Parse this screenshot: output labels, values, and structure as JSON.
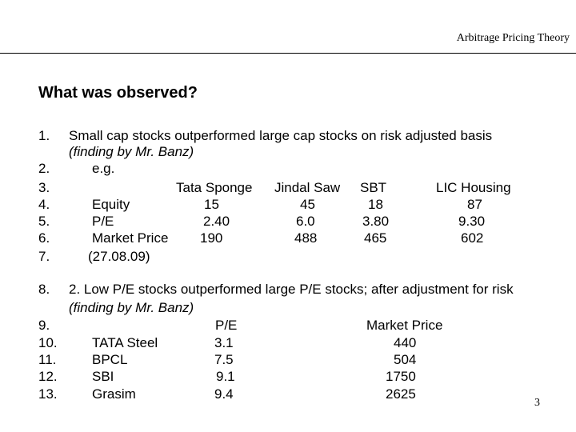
{
  "header": {
    "title": "Arbitrage Pricing Theory"
  },
  "slide": {
    "title": "What was observed?",
    "page_number": "3"
  },
  "section1": {
    "num1": "1.",
    "line1a": "Small cap stocks outperformed large cap stocks on risk adjusted basis",
    "line1b": "(finding by Mr. Banz)",
    "num2": "2.",
    "eg": "e.g.",
    "num3": "3.",
    "num4": "4.",
    "num5": "5.",
    "num6": "6.",
    "num7": "7.",
    "companies": [
      "Tata Sponge",
      "Jindal Saw",
      "SBT",
      "LIC Housing"
    ],
    "rows": [
      {
        "label": "Equity",
        "values": [
          "15",
          "45",
          "18",
          "87"
        ]
      },
      {
        "label": "P/E",
        "values": [
          "2.40",
          "6.0",
          "3.80",
          "9.30"
        ]
      },
      {
        "label": "Market Price",
        "values": [
          "190",
          "488",
          "465",
          "602"
        ]
      }
    ],
    "date": "(27.08.09)"
  },
  "section2": {
    "num8": "8.",
    "line8a": "2. Low P/E stocks outperformed large P/E stocks; after adjustment for risk",
    "line8b": "(finding by Mr. Banz)",
    "num9": "9.",
    "headers": {
      "pe": "P/E",
      "price": "Market Price"
    },
    "rows": [
      {
        "num": "10.",
        "name": "TATA Steel",
        "pe": "3.1",
        "price": "440"
      },
      {
        "num": "11.",
        "name": "BPCL",
        "pe": "7.5",
        "price": "504"
      },
      {
        "num": "12.",
        "name": "SBI",
        "pe": "9.1",
        "price": "1750"
      },
      {
        "num": "13.",
        "name": "Grasim",
        "pe": "9.4",
        "price": "2625"
      }
    ]
  }
}
